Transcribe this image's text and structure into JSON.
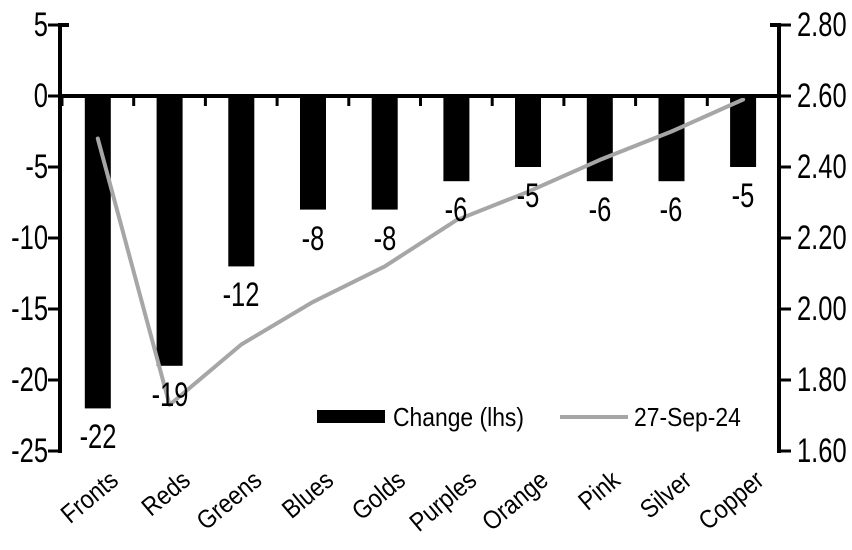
{
  "chart_data": {
    "type": "bar",
    "combo": "bar + line, dual axis",
    "title": "",
    "xlabel": "",
    "ylabel": "",
    "grid": false,
    "background": "#ffffff",
    "axis_color": "#000000",
    "legend_position": "bottom-inside",
    "categories": [
      "Fronts",
      "Reds",
      "Greens",
      "Blues",
      "Golds",
      "Purples",
      "Orange",
      "Pink",
      "Silver",
      "Copper"
    ],
    "series": [
      {
        "name": "Change (lhs)",
        "type": "bar",
        "axis": "left",
        "color": "#000000",
        "values": [
          -22,
          -19,
          -12,
          -8,
          -8,
          -6,
          -5,
          -6,
          -6,
          -5
        ],
        "data_labels": [
          "-22",
          "-19",
          "-12",
          "-8",
          "-8",
          "-6",
          "-5",
          "-6",
          "-6",
          "-5"
        ]
      },
      {
        "name": "27-Sep-24",
        "type": "line",
        "axis": "right",
        "color": "#a6a6a6",
        "values": [
          2.48,
          1.73,
          1.9,
          2.02,
          2.12,
          2.25,
          2.33,
          2.42,
          2.5,
          2.59
        ]
      }
    ],
    "left_axis": {
      "max": 5,
      "min": -25,
      "ticks": [
        "5",
        "0",
        "-5",
        "-10",
        "-15",
        "-20",
        "-25"
      ]
    },
    "right_axis": {
      "max": 2.8,
      "min": 1.6,
      "ticks": [
        "2.80",
        "2.60",
        "2.40",
        "2.20",
        "2.00",
        "1.80",
        "1.60"
      ]
    }
  }
}
